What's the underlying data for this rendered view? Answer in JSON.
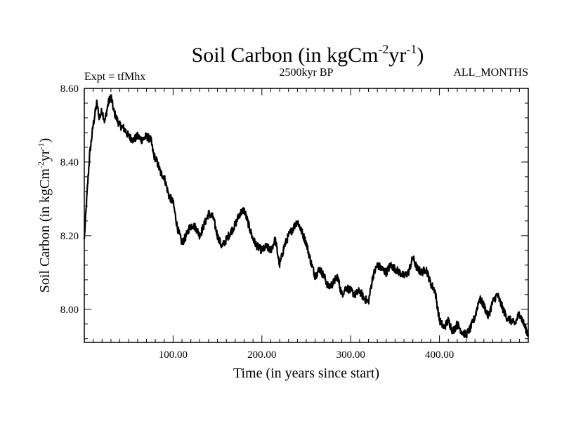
{
  "chart_data": {
    "type": "line",
    "title_main": "Soil Carbon (in kgCm",
    "title_sup1": "-2",
    "title_mid": "yr",
    "title_sup2": "-1",
    "title_end": ")",
    "subtitle_left": "Expt = tfMhx",
    "subtitle_center": "2500kyr BP",
    "subtitle_right": "ALL_MONTHS",
    "xlabel": "Time (in years since start)",
    "ylabel_main": "Soil Carbon (in kgCm",
    "ylabel_sup1": "-2",
    "ylabel_mid": "yr",
    "ylabel_sup2": "-1",
    "ylabel_end": ")",
    "xlim": [
      0,
      500
    ],
    "ylim": [
      7.91,
      8.6
    ],
    "x_ticks": [
      100,
      200,
      300,
      400
    ],
    "x_tick_labels": [
      "100.00",
      "200.00",
      "300.00",
      "400.00"
    ],
    "y_ticks": [
      8.0,
      8.2,
      8.4,
      8.6
    ],
    "y_tick_labels": [
      "8.00",
      "8.20",
      "8.40",
      "8.60"
    ],
    "line_color": "#000000",
    "series": [
      {
        "x": [
          0,
          3,
          6,
          10,
          14,
          17,
          20,
          23,
          27,
          30,
          33,
          36,
          40,
          45,
          50,
          55,
          60,
          65,
          70,
          75,
          78,
          82,
          86,
          90,
          95,
          100,
          105,
          110,
          115,
          118,
          122,
          126,
          130,
          135,
          140,
          145,
          150,
          155,
          160,
          165,
          170,
          175,
          180,
          185,
          190,
          195,
          200,
          205,
          210,
          215,
          220,
          225,
          230,
          235,
          240,
          245,
          250,
          255,
          260,
          265,
          270,
          275,
          280,
          285,
          290,
          295,
          300,
          305,
          310,
          315,
          320,
          325,
          330,
          335,
          340,
          345,
          350,
          355,
          360,
          365,
          370,
          375,
          380,
          385,
          390,
          395,
          400,
          405,
          410,
          415,
          420,
          425,
          430,
          435,
          440,
          445,
          450,
          455,
          460,
          465,
          470,
          475,
          480,
          485,
          490,
          495,
          500
        ],
        "y": [
          8.19,
          8.31,
          8.42,
          8.5,
          8.56,
          8.52,
          8.54,
          8.51,
          8.56,
          8.58,
          8.54,
          8.52,
          8.5,
          8.49,
          8.47,
          8.46,
          8.47,
          8.46,
          8.47,
          8.46,
          8.42,
          8.4,
          8.37,
          8.36,
          8.31,
          8.29,
          8.22,
          8.18,
          8.2,
          8.22,
          8.23,
          8.22,
          8.2,
          8.23,
          8.26,
          8.25,
          8.2,
          8.17,
          8.19,
          8.21,
          8.23,
          8.26,
          8.27,
          8.23,
          8.19,
          8.17,
          8.16,
          8.17,
          8.16,
          8.19,
          8.12,
          8.17,
          8.2,
          8.22,
          8.24,
          8.21,
          8.18,
          8.13,
          8.09,
          8.11,
          8.09,
          8.06,
          8.07,
          8.09,
          8.04,
          8.06,
          8.05,
          8.04,
          8.05,
          8.03,
          8.02,
          8.09,
          8.12,
          8.11,
          8.1,
          8.12,
          8.11,
          8.1,
          8.09,
          8.1,
          8.14,
          8.11,
          8.1,
          8.11,
          8.07,
          8.05,
          7.97,
          7.95,
          7.97,
          7.94,
          7.96,
          7.94,
          7.93,
          7.95,
          7.98,
          8.03,
          8.01,
          7.98,
          8.02,
          8.04,
          8.01,
          7.98,
          7.97,
          7.96,
          7.99,
          7.96,
          7.93
        ]
      }
    ]
  }
}
